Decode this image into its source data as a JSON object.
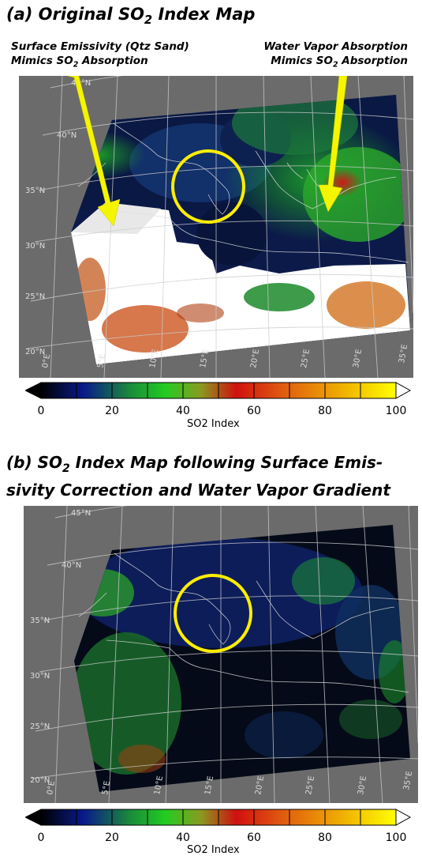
{
  "panel_a": {
    "title_pre": "(a) Original SO",
    "title_sub": "2",
    "title_post": " Index Map",
    "annotation_left": {
      "line1": "Surface Emissivity (Qtz Sand)",
      "line2_pre": "Mimics SO",
      "line2_sub": "2",
      "line2_post": " Absorption"
    },
    "annotation_right": {
      "line1": "Water Vapor Absorption",
      "line2_pre": "Mimics SO",
      "line2_sub": "2",
      "line2_post": " Absorption"
    },
    "lat_labels": [
      "45°N",
      "40°N",
      "35°N",
      "30°N",
      "25°N",
      "20°N"
    ],
    "lon_labels": [
      "0°E",
      "5°E",
      "10°E",
      "15°E",
      "20°E",
      "25°E",
      "30°E",
      "35°E"
    ]
  },
  "panel_b": {
    "title_line1_pre": "(b) SO",
    "title_line1_sub": "2",
    "title_line1_post": " Index Map following Surface Emis-",
    "title_line2": "sivity Correction and Water Vapor Gradient",
    "lat_labels": [
      "45°N",
      "40°N",
      "35°N",
      "30°N",
      "25°N",
      "20°N"
    ],
    "lon_labels": [
      "0°E",
      "5°E",
      "10°E",
      "15°E",
      "20°E",
      "25°E",
      "30°E",
      "35°E"
    ]
  },
  "colorbar": {
    "label": "SO2 Index",
    "ticks": [
      "0",
      "20",
      "40",
      "60",
      "80",
      "100"
    ],
    "tick_values": [
      0,
      20,
      40,
      60,
      80,
      100
    ],
    "range": [
      0,
      100
    ],
    "colors": [
      "#000000",
      "#0a1a8a",
      "#1a8a3a",
      "#22cc22",
      "#a0b020",
      "#d01010",
      "#e05a10",
      "#f0a000",
      "#ffff00",
      "#ffffff"
    ]
  },
  "colors": {
    "background": "#6b6b6b",
    "highlight_circle": "#ffee00",
    "arrow": "#f5f500"
  }
}
